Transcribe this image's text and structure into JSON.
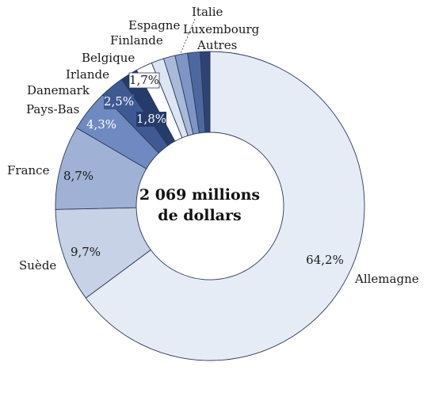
{
  "chart_data": {
    "type": "pie",
    "variant": "donut",
    "center_text": [
      "2 069 millions",
      "de dollars"
    ],
    "start_angle_deg": 0,
    "direction": "clockwise",
    "slices": [
      {
        "name": "Allemagne",
        "value": 64.2,
        "label": "64,2%",
        "color": "#e6ecf6",
        "label_color": "#1a1a1a"
      },
      {
        "name": "Suède",
        "value": 9.7,
        "label": "9,7%",
        "color": "#c7d2e6",
        "label_color": "#1a1a1a"
      },
      {
        "name": "France",
        "value": 8.7,
        "label": "8,7%",
        "color": "#9fb2d6",
        "label_color": "#1a1a1a"
      },
      {
        "name": "Pays-Bas",
        "value": 4.3,
        "label": "4,3%",
        "color": "#6f8ac0",
        "label_color": "#ffffff"
      },
      {
        "name": "Danemark",
        "value": 2.5,
        "label": "2,5%",
        "color": "#3f5a93",
        "label_color": "#ffffff"
      },
      {
        "name": "Irlande",
        "value": 1.8,
        "label": "1,8%",
        "color": "#253b6a",
        "label_color": "#ffffff"
      },
      {
        "name": "Belgique",
        "value": 1.7,
        "label": "1,7%",
        "color": "#ffffff",
        "label_color": "#1a1a1a"
      },
      {
        "name": "Finlande",
        "value": 1.3,
        "label": "",
        "color": "#dde5f2",
        "label_color": "#1a1a1a"
      },
      {
        "name": "Espagne",
        "value": 1.2,
        "label": "",
        "color": "#a9bad9",
        "label_color": "#1a1a1a"
      },
      {
        "name": "Italie",
        "value": 1.3,
        "label": "",
        "color": "#7e95c6",
        "label_color": "#1a1a1a"
      },
      {
        "name": "Luxembourg",
        "value": 1.3,
        "label": "",
        "color": "#4e689f",
        "label_color": "#1a1a1a"
      },
      {
        "name": "Autres",
        "value": 1.0,
        "label": "",
        "color": "#2e4373",
        "label_color": "#1a1a1a"
      }
    ]
  }
}
